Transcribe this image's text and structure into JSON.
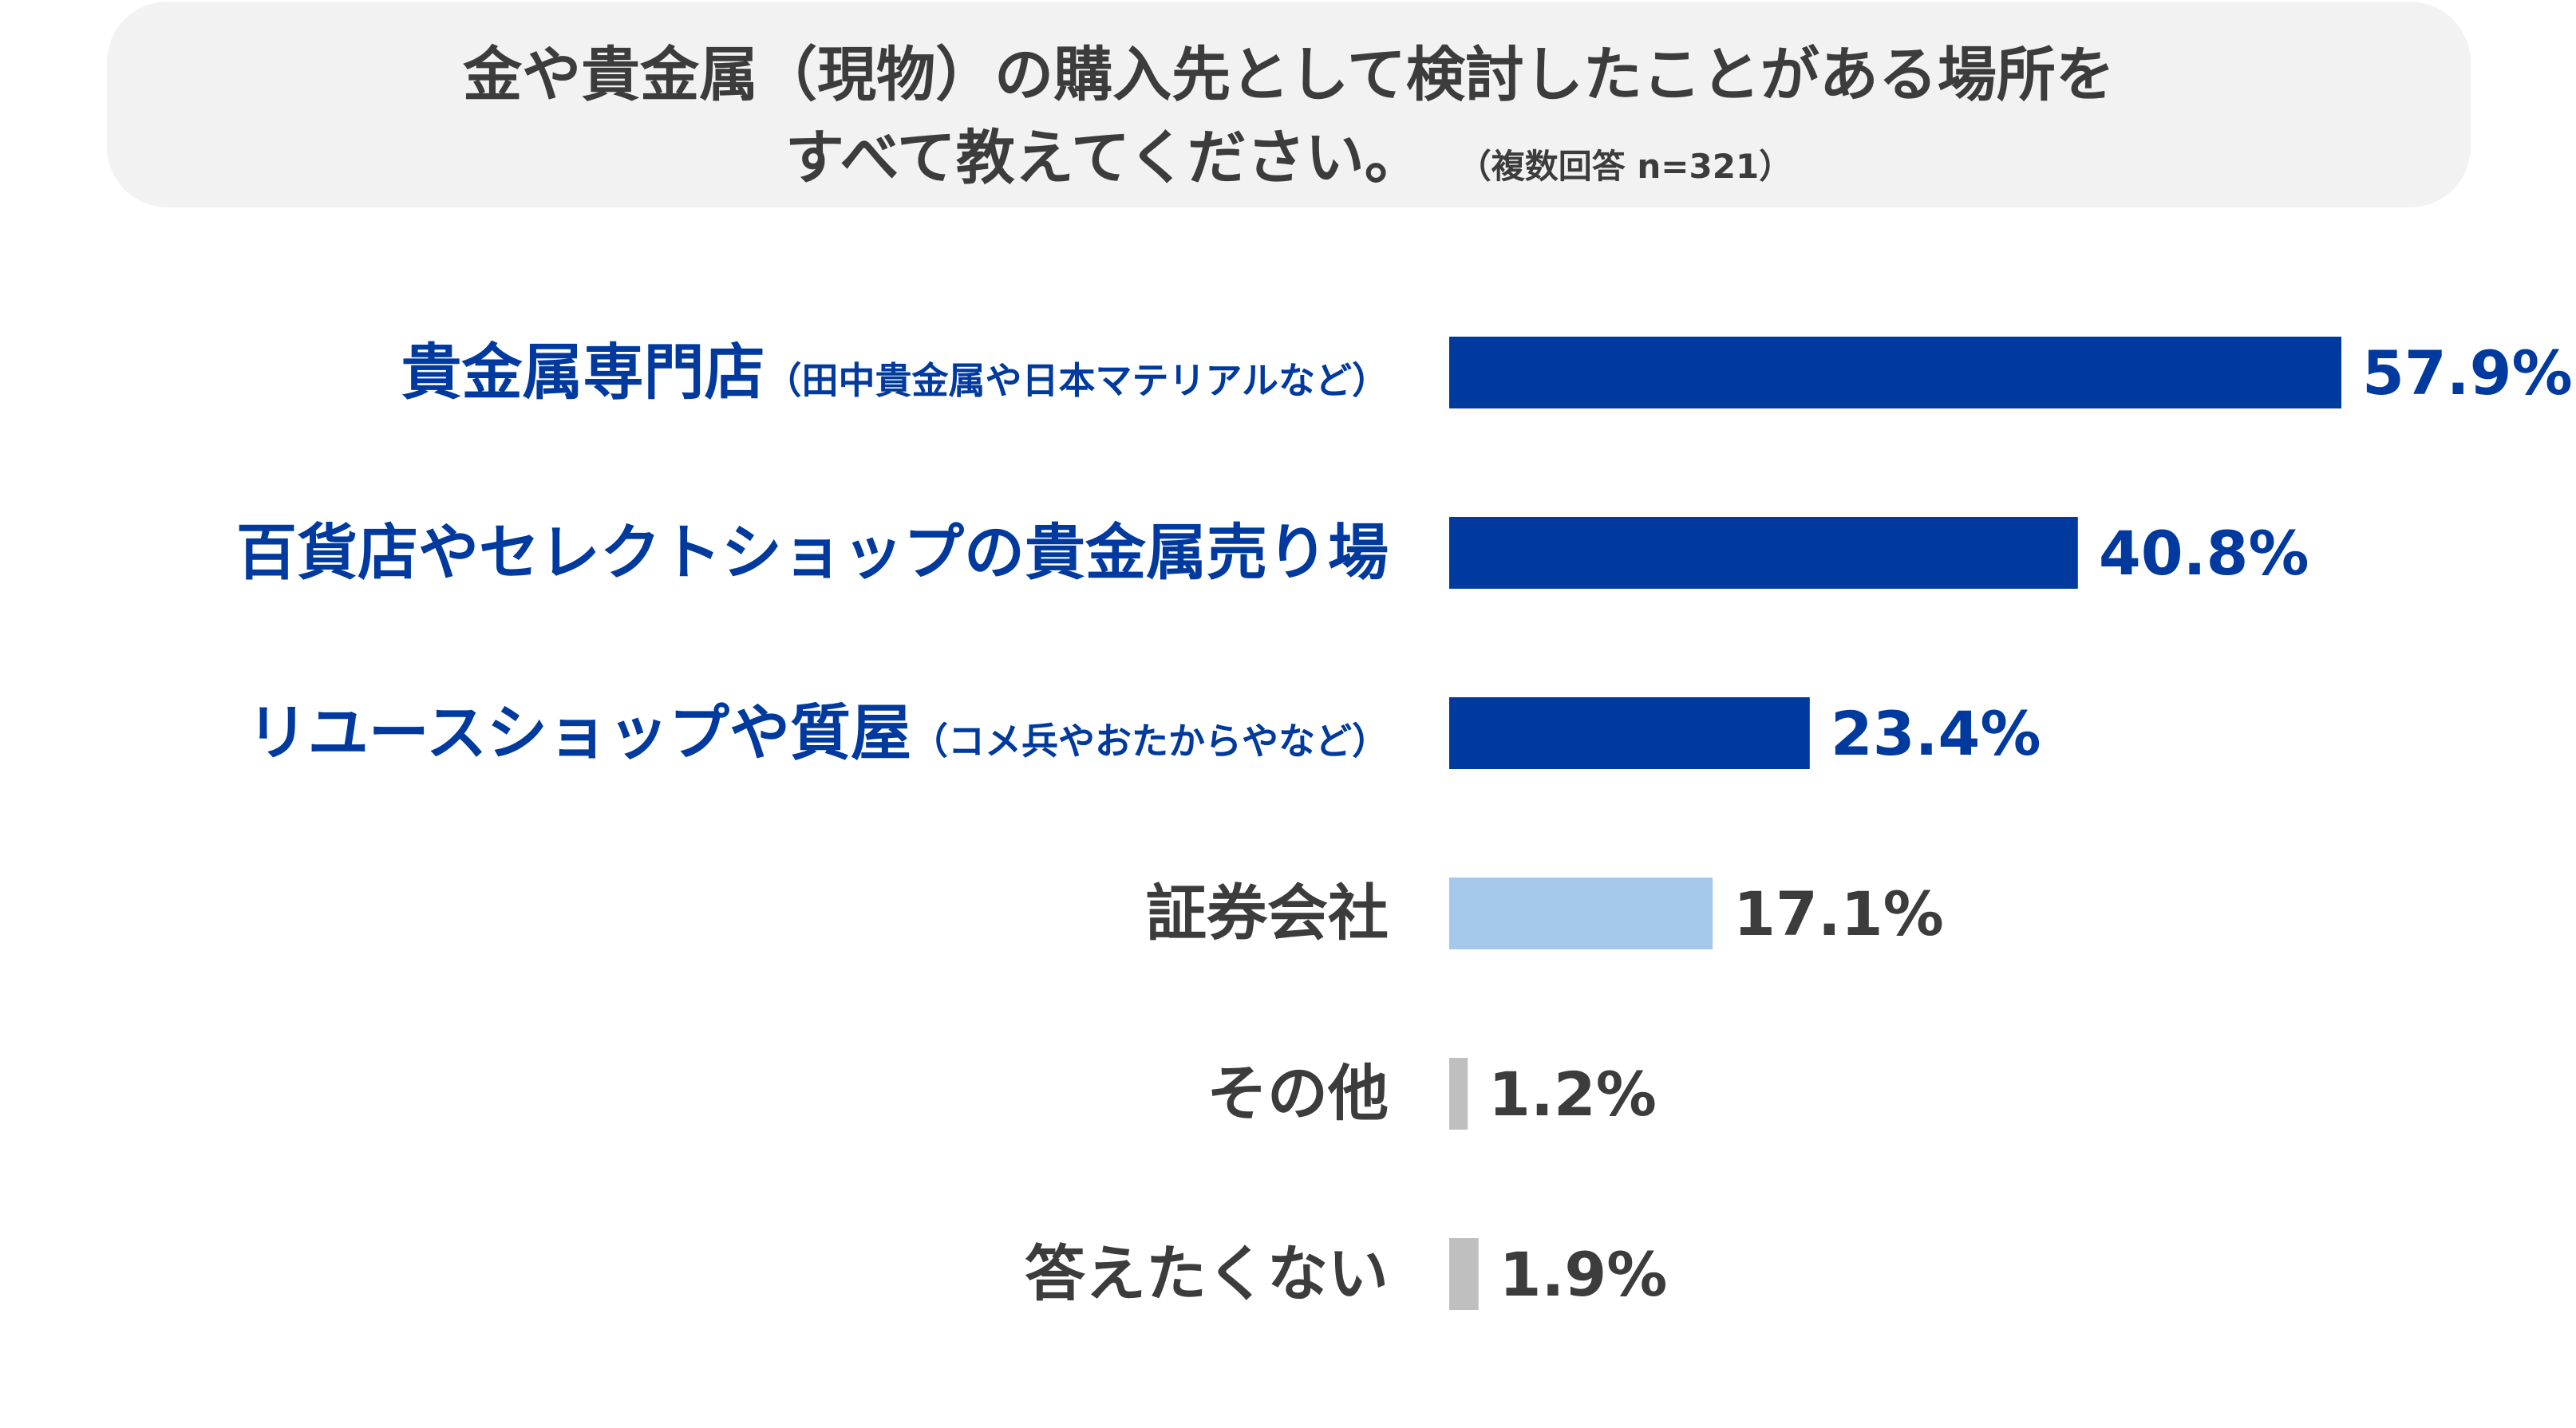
{
  "title": {
    "line1": "金や貴金属（現物）の購入先として検討したことがある場所を",
    "line2": "すべて教えてください。",
    "note": "（複数回答 n=321）"
  },
  "colors": {
    "dark_blue": "#003a9e",
    "light_blue": "#a6c8ea",
    "gray": "#bfbfbf",
    "label_gray": "#3c3c3c"
  },
  "chart_data": {
    "type": "bar",
    "orientation": "horizontal",
    "unit": "%",
    "categories": [
      {
        "label": "貴金属専門店",
        "sub": "（田中貴金属や日本マテリアルなど）",
        "value": 57.9,
        "value_label": "57.9%",
        "color": "dark_blue"
      },
      {
        "label": "百貨店やセレクトショップの貴金属売り場",
        "sub": "",
        "value": 40.8,
        "value_label": "40.8%",
        "color": "dark_blue"
      },
      {
        "label": "リユースショップや質屋",
        "sub": "（コメ兵やおたからやなど）",
        "value": 23.4,
        "value_label": "23.4%",
        "color": "dark_blue"
      },
      {
        "label": "証券会社",
        "sub": "",
        "value": 17.1,
        "value_label": "17.1%",
        "color": "light_blue"
      },
      {
        "label": "その他",
        "sub": "",
        "value": 1.2,
        "value_label": "1.2%",
        "color": "gray"
      },
      {
        "label": "答えたくない",
        "sub": "",
        "value": 1.9,
        "value_label": "1.9%",
        "color": "gray"
      }
    ]
  }
}
